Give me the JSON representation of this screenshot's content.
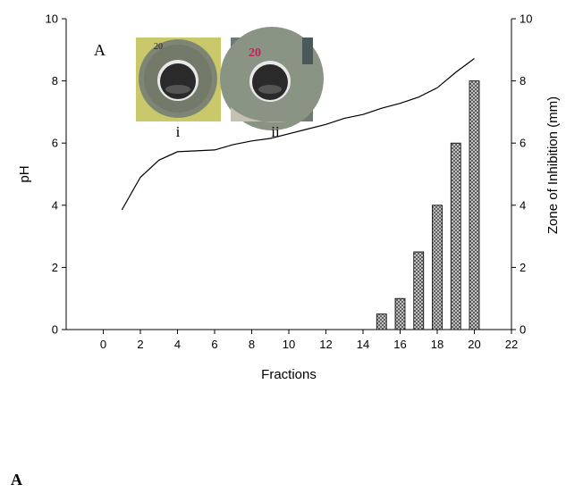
{
  "chart_data": {
    "type": "bar",
    "panel_label": "A",
    "xlabel": "Fractions",
    "ylabel_left": "pH",
    "ylabel_right": "Zone of Inhibition (mm)",
    "xlim": [
      -2,
      22
    ],
    "ylim_left": [
      0,
      10
    ],
    "ylim_right": [
      0,
      10
    ],
    "x_ticks": [
      0,
      2,
      4,
      6,
      8,
      10,
      12,
      14,
      16,
      18,
      20,
      22
    ],
    "y_ticks_left": [
      0,
      2,
      4,
      6,
      8,
      10
    ],
    "y_ticks_right": [
      0,
      2,
      4,
      6,
      8,
      10
    ],
    "grid": false,
    "series": [
      {
        "type": "line",
        "axis": "left",
        "x": [
          1,
          2,
          3,
          4,
          5,
          6,
          7,
          8,
          9,
          10,
          11,
          12,
          13,
          14,
          15,
          16,
          17,
          18,
          19,
          20
        ],
        "values": [
          3.85,
          4.9,
          5.45,
          5.72,
          5.75,
          5.78,
          5.95,
          6.07,
          6.15,
          6.3,
          6.45,
          6.6,
          6.8,
          6.92,
          7.12,
          7.28,
          7.48,
          7.78,
          8.28,
          8.72
        ]
      },
      {
        "type": "bar",
        "axis": "right",
        "pattern": "crosshatch",
        "x": [
          15,
          16,
          17,
          18,
          19,
          20
        ],
        "values": [
          0.5,
          1.0,
          2.5,
          4.0,
          6.0,
          8.0
        ]
      }
    ],
    "insets": [
      {
        "label": "i",
        "plate_text": "20",
        "agar_color": "#c9c86a",
        "zone_color": "#7f8574"
      },
      {
        "label": "ii",
        "plate_text": "20",
        "agar_color": "#8a9485",
        "zone_color": "#7c8578"
      }
    ],
    "colors": {
      "line": "#000000",
      "bar_fill": "#d0d0d0",
      "hatch": "#333333"
    }
  },
  "figure_label": "A"
}
